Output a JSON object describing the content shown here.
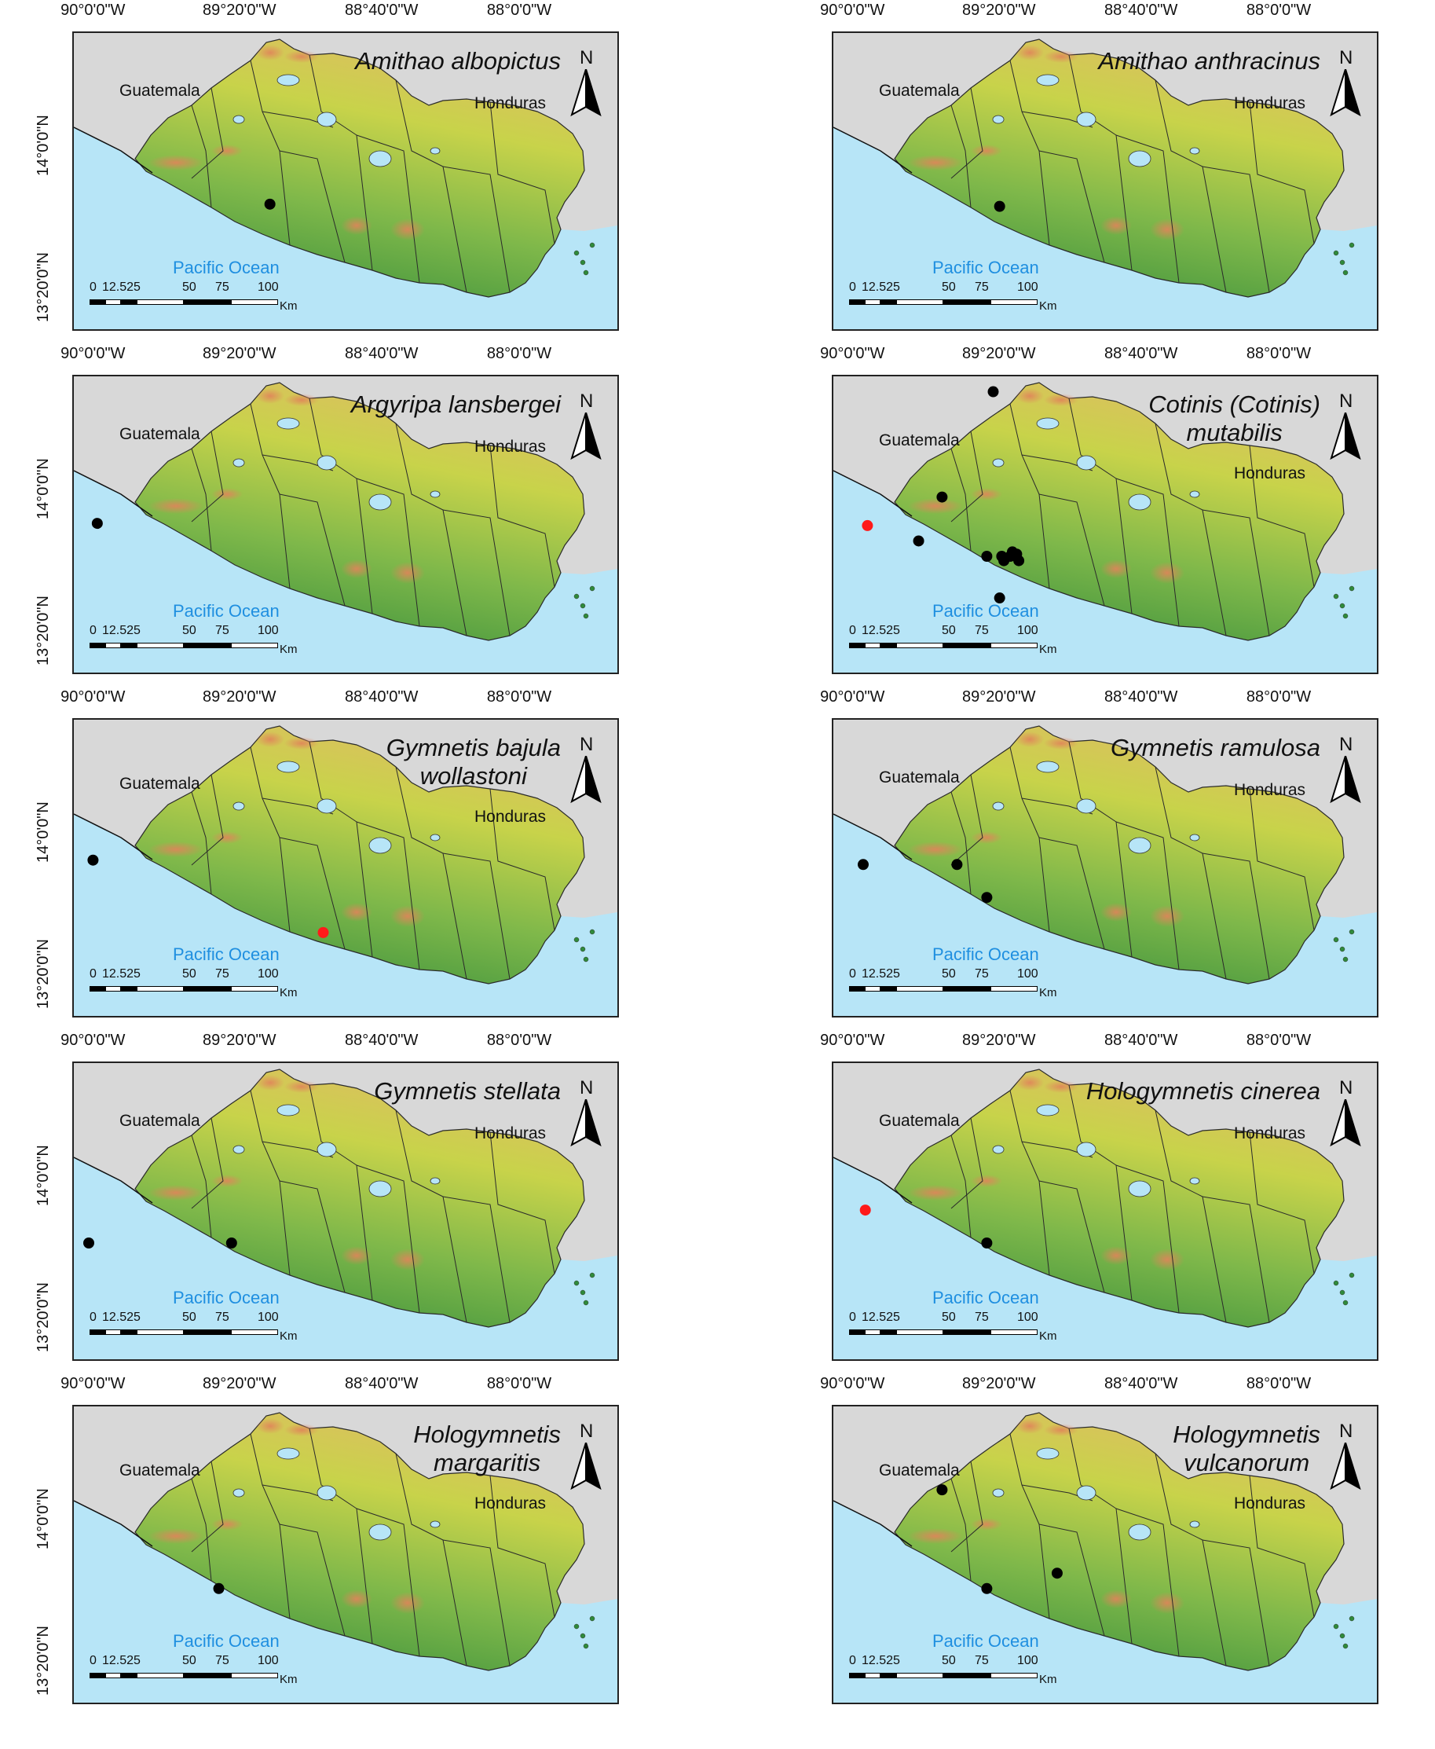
{
  "labels": {
    "lon": [
      "90°0'0\"W",
      "89°20'0\"W",
      "88°40'0\"W",
      "88°0'0\"W"
    ],
    "lat": [
      "14°0'0\"N",
      "13°20'0\"N"
    ],
    "guatemala": "Guatemala",
    "honduras": "Honduras",
    "ocean": "Pacific Ocean",
    "north": "N",
    "scale_ticks": [
      "0",
      "12.525",
      "50",
      "75",
      "100"
    ],
    "scale_unit": "Km"
  },
  "colors": {
    "land_low": "#2f8a3a",
    "land_mid": "#c8d34a",
    "land_high": "#e0845a",
    "water": "#b7e5f7",
    "background": "#d8d8d8",
    "record_black": "#000000",
    "record_red": "#ff1a1a",
    "ocean_label": "#1f8fe0"
  },
  "maps": [
    {
      "title_lines": [
        "Amithao albopictus"
      ],
      "records": [
        {
          "lon": -89.18,
          "lat": 13.72,
          "color": "black"
        }
      ]
    },
    {
      "title_lines": [
        "Amithao anthracinus"
      ],
      "records": [
        {
          "lon": -89.32,
          "lat": 13.71,
          "color": "black"
        }
      ]
    },
    {
      "title_lines": [
        "Argyripa lansbergei"
      ],
      "records": [
        {
          "lon": -89.99,
          "lat": 13.83,
          "color": "black"
        }
      ]
    },
    {
      "title_lines": [
        "Cotinis (Cotinis)",
        "mutabilis"
      ],
      "records": [
        {
          "lon": -89.35,
          "lat": 14.43,
          "color": "black"
        },
        {
          "lon": -89.59,
          "lat": 13.95,
          "color": "black"
        },
        {
          "lon": -89.7,
          "lat": 13.75,
          "color": "black"
        },
        {
          "lon": -89.38,
          "lat": 13.68,
          "color": "black"
        },
        {
          "lon": -89.31,
          "lat": 13.68,
          "color": "black"
        },
        {
          "lon": -89.26,
          "lat": 13.7,
          "color": "black"
        },
        {
          "lon": -89.27,
          "lat": 13.68,
          "color": "black"
        },
        {
          "lon": -89.23,
          "lat": 13.66,
          "color": "black"
        },
        {
          "lon": -89.24,
          "lat": 13.69,
          "color": "black"
        },
        {
          "lon": -89.3,
          "lat": 13.66,
          "color": "black"
        },
        {
          "lon": -89.32,
          "lat": 13.49,
          "color": "black"
        },
        {
          "lon": -89.94,
          "lat": 13.82,
          "color": "red"
        }
      ]
    },
    {
      "title_lines": [
        "Gymnetis bajula",
        "wollastoni"
      ],
      "records": [
        {
          "lon": -90.01,
          "lat": 13.86,
          "color": "black"
        },
        {
          "lon": -88.93,
          "lat": 13.53,
          "color": "red"
        }
      ]
    },
    {
      "title_lines": [
        "Gymnetis ramulosa"
      ],
      "records": [
        {
          "lon": -89.96,
          "lat": 13.84,
          "color": "black"
        },
        {
          "lon": -89.52,
          "lat": 13.84,
          "color": "black"
        },
        {
          "lon": -89.38,
          "lat": 13.69,
          "color": "black"
        }
      ]
    },
    {
      "title_lines": [
        "Gymnetis stellata"
      ],
      "records": [
        {
          "lon": -90.03,
          "lat": 13.68,
          "color": "black"
        },
        {
          "lon": -89.36,
          "lat": 13.68,
          "color": "black"
        }
      ]
    },
    {
      "title_lines": [
        "Hologymnetis cinerea"
      ],
      "records": [
        {
          "lon": -89.95,
          "lat": 13.83,
          "color": "red"
        },
        {
          "lon": -89.38,
          "lat": 13.68,
          "color": "black"
        }
      ]
    },
    {
      "title_lines": [
        "Hologymnetis",
        "margaritis"
      ],
      "records": [
        {
          "lon": -89.42,
          "lat": 13.67,
          "color": "black"
        }
      ]
    },
    {
      "title_lines": [
        "Hologymnetis",
        "vulcanorum"
      ],
      "records": [
        {
          "lon": -89.59,
          "lat": 14.12,
          "color": "black"
        },
        {
          "lon": -89.38,
          "lat": 13.67,
          "color": "black"
        },
        {
          "lon": -89.05,
          "lat": 13.74,
          "color": "black"
        }
      ]
    }
  ]
}
